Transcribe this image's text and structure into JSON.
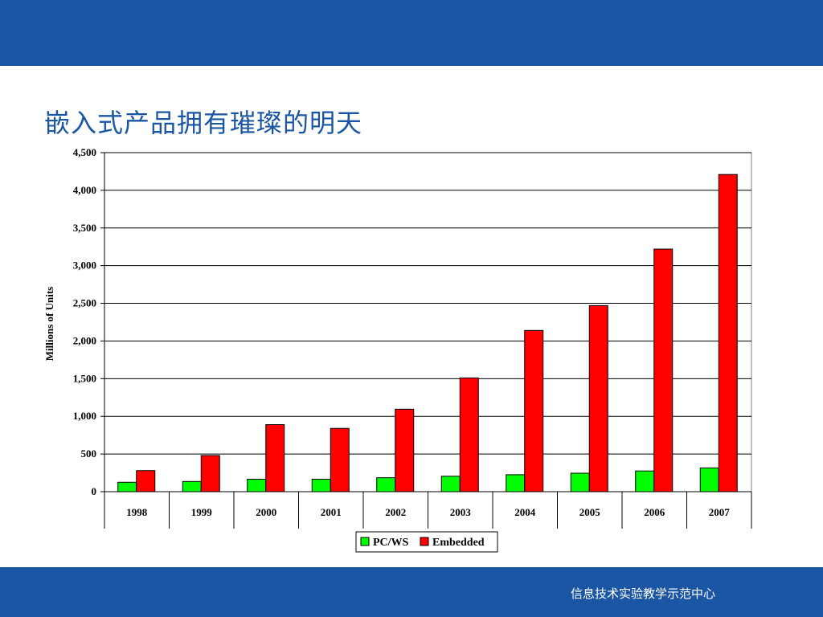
{
  "slide": {
    "title": "嵌入式产品拥有璀璨的明天",
    "footer": "信息技术实验教学示范中心",
    "band_color": "#1a56a4"
  },
  "chart_data": {
    "type": "bar",
    "categories": [
      "1998",
      "1999",
      "2000",
      "2001",
      "2002",
      "2003",
      "2004",
      "2005",
      "2006",
      "2007"
    ],
    "series": [
      {
        "name": "PC/WS",
        "color": "#00ff00",
        "values": [
          125,
          135,
          165,
          165,
          185,
          205,
          225,
          245,
          275,
          315
        ]
      },
      {
        "name": "Embedded",
        "color": "#ff0000",
        "values": [
          280,
          480,
          890,
          840,
          1095,
          1510,
          2140,
          2470,
          3220,
          4210
        ]
      }
    ],
    "ylabel": "Millions of Units",
    "xlabel": "",
    "ylim": [
      0,
      4500
    ],
    "yticks": [
      0,
      500,
      1000,
      1500,
      2000,
      2500,
      3000,
      3500,
      4000,
      4500
    ],
    "ytick_labels": [
      "0",
      "500",
      "1,000",
      "1,500",
      "2,000",
      "2,500",
      "3,000",
      "3,500",
      "4,000",
      "4,500"
    ],
    "grid": true,
    "legend": "bottom-center"
  }
}
